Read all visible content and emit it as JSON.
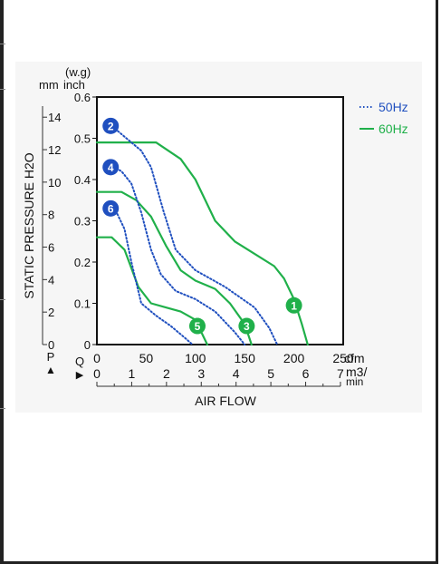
{
  "chart_data": {
    "type": "line",
    "ylabel": "STATIC PRESSURE H2O",
    "xlabel": "AIR FLOW",
    "y_unit_top": "(w.g)",
    "y_unit_mm": "mm",
    "y_unit_inch": "inch",
    "p_symbol": "P",
    "q_symbol": "Q",
    "x_unit_cfm": "cfm",
    "x_unit_m3": "m3/",
    "x_unit_min": "min",
    "xlim": [
      0,
      250
    ],
    "ylim": [
      0,
      0.6
    ],
    "x_ticks_cfm": [
      "0",
      "50",
      "100",
      "150",
      "200",
      "250"
    ],
    "x_ticks_m3": [
      "0",
      "1",
      "2",
      "3",
      "4",
      "5",
      "6",
      "7"
    ],
    "y_ticks_inch": [
      "0",
      "0.1",
      "0.2",
      "0.3",
      "0.4",
      "0.5",
      "0.6"
    ],
    "y_ticks_mm": [
      "0",
      "2",
      "4",
      "6",
      "8",
      "10",
      "12",
      "14"
    ],
    "legend": [
      {
        "label": "50Hz",
        "style": "dotted",
        "color": "#1f4fbf"
      },
      {
        "label": "60Hz",
        "style": "solid",
        "color": "#20b04a"
      }
    ],
    "series": [
      {
        "marker": "1",
        "freq": "60Hz",
        "color": "#20b04a",
        "points": [
          [
            0,
            0.49
          ],
          [
            60,
            0.49
          ],
          [
            85,
            0.45
          ],
          [
            100,
            0.4
          ],
          [
            120,
            0.3
          ],
          [
            140,
            0.25
          ],
          [
            160,
            0.22
          ],
          [
            180,
            0.19
          ],
          [
            190,
            0.16
          ],
          [
            200,
            0.11
          ],
          [
            208,
            0.05
          ],
          [
            214,
            0
          ]
        ]
      },
      {
        "marker": "3",
        "freq": "60Hz",
        "color": "#20b04a",
        "points": [
          [
            0,
            0.37
          ],
          [
            25,
            0.37
          ],
          [
            40,
            0.35
          ],
          [
            55,
            0.31
          ],
          [
            70,
            0.24
          ],
          [
            85,
            0.18
          ],
          [
            100,
            0.155
          ],
          [
            120,
            0.135
          ],
          [
            135,
            0.1
          ],
          [
            150,
            0.05
          ],
          [
            157,
            0
          ]
        ]
      },
      {
        "marker": "5",
        "freq": "60Hz",
        "color": "#20b04a",
        "points": [
          [
            0,
            0.26
          ],
          [
            15,
            0.26
          ],
          [
            28,
            0.23
          ],
          [
            42,
            0.14
          ],
          [
            55,
            0.1
          ],
          [
            70,
            0.09
          ],
          [
            85,
            0.08
          ],
          [
            100,
            0.06
          ],
          [
            108,
            0.02
          ],
          [
            112,
            0
          ]
        ]
      },
      {
        "marker": "2",
        "freq": "50Hz",
        "color": "#1f4fbf",
        "points": [
          [
            10,
            0.54
          ],
          [
            30,
            0.5
          ],
          [
            45,
            0.47
          ],
          [
            55,
            0.43
          ],
          [
            68,
            0.32
          ],
          [
            80,
            0.23
          ],
          [
            100,
            0.18
          ],
          [
            130,
            0.14
          ],
          [
            160,
            0.09
          ],
          [
            175,
            0.04
          ],
          [
            183,
            0
          ]
        ]
      },
      {
        "marker": "4",
        "freq": "50Hz",
        "color": "#1f4fbf",
        "points": [
          [
            10,
            0.44
          ],
          [
            25,
            0.42
          ],
          [
            35,
            0.39
          ],
          [
            45,
            0.32
          ],
          [
            55,
            0.23
          ],
          [
            65,
            0.17
          ],
          [
            80,
            0.13
          ],
          [
            100,
            0.11
          ],
          [
            120,
            0.08
          ],
          [
            140,
            0.03
          ],
          [
            150,
            0
          ]
        ]
      },
      {
        "marker": "6",
        "freq": "50Hz",
        "color": "#1f4fbf",
        "points": [
          [
            10,
            0.34
          ],
          [
            20,
            0.32
          ],
          [
            28,
            0.28
          ],
          [
            35,
            0.2
          ],
          [
            45,
            0.1
          ],
          [
            60,
            0.07
          ],
          [
            75,
            0.045
          ],
          [
            90,
            0.015
          ],
          [
            97,
            0
          ]
        ]
      }
    ],
    "marker_points": [
      {
        "label": "1",
        "color": "#20b04a",
        "x": 200,
        "y": 0.095
      },
      {
        "label": "3",
        "color": "#20b04a",
        "x": 152,
        "y": 0.045
      },
      {
        "label": "5",
        "color": "#20b04a",
        "x": 102,
        "y": 0.045
      },
      {
        "label": "2",
        "color": "#1f4fbf",
        "x": 14,
        "y": 0.53
      },
      {
        "label": "4",
        "color": "#1f4fbf",
        "x": 14,
        "y": 0.43
      },
      {
        "label": "6",
        "color": "#1f4fbf",
        "x": 14,
        "y": 0.33
      }
    ],
    "grid": false,
    "legend_position": "right"
  }
}
